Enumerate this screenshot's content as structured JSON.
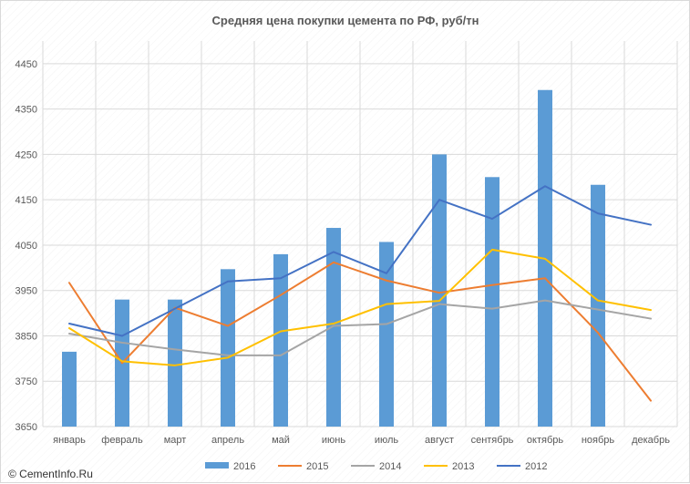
{
  "chart_data": {
    "type": "bar",
    "title": "Средняя цена  покупки цемента по РФ, руб/тн",
    "xlabel": "",
    "ylabel": "",
    "categories": [
      "январь",
      "февраль",
      "март",
      "апрель",
      "май",
      "июнь",
      "июль",
      "август",
      "сентябрь",
      "октябрь",
      "ноябрь",
      "декабрь"
    ],
    "ylim": [
      3650,
      4500
    ],
    "yticks": [
      3650,
      3750,
      3850,
      3950,
      4050,
      4150,
      4250,
      4350,
      4450
    ],
    "grid": true,
    "legend_position": "bottom",
    "series": [
      {
        "name": "2016",
        "kind": "bar",
        "color": "#5b9bd5",
        "values": [
          3815,
          3930,
          3930,
          3997,
          4030,
          4088,
          4057,
          4250,
          4200,
          4392,
          4183,
          null
        ]
      },
      {
        "name": "2015",
        "kind": "line",
        "color": "#ed7d31",
        "values": [
          3967,
          3790,
          3912,
          3872,
          3940,
          4012,
          3972,
          3945,
          3962,
          3977,
          3857,
          3707
        ]
      },
      {
        "name": "2014",
        "kind": "line",
        "color": "#a5a5a5",
        "values": [
          3855,
          3835,
          3820,
          3807,
          3807,
          3872,
          3876,
          3920,
          3910,
          3928,
          3908,
          3888
        ]
      },
      {
        "name": "2013",
        "kind": "line",
        "color": "#ffc000",
        "values": [
          3867,
          3794,
          3785,
          3802,
          3860,
          3877,
          3920,
          3927,
          4040,
          4020,
          3928,
          3907
        ]
      },
      {
        "name": "2012",
        "kind": "line",
        "color": "#4472c4",
        "values": [
          3877,
          3850,
          3910,
          3970,
          3977,
          4035,
          3988,
          4150,
          4108,
          4180,
          4120,
          4095
        ]
      }
    ]
  },
  "footer": {
    "watermark": "© CementInfo.Ru",
    "icon": "copyright-icon"
  }
}
